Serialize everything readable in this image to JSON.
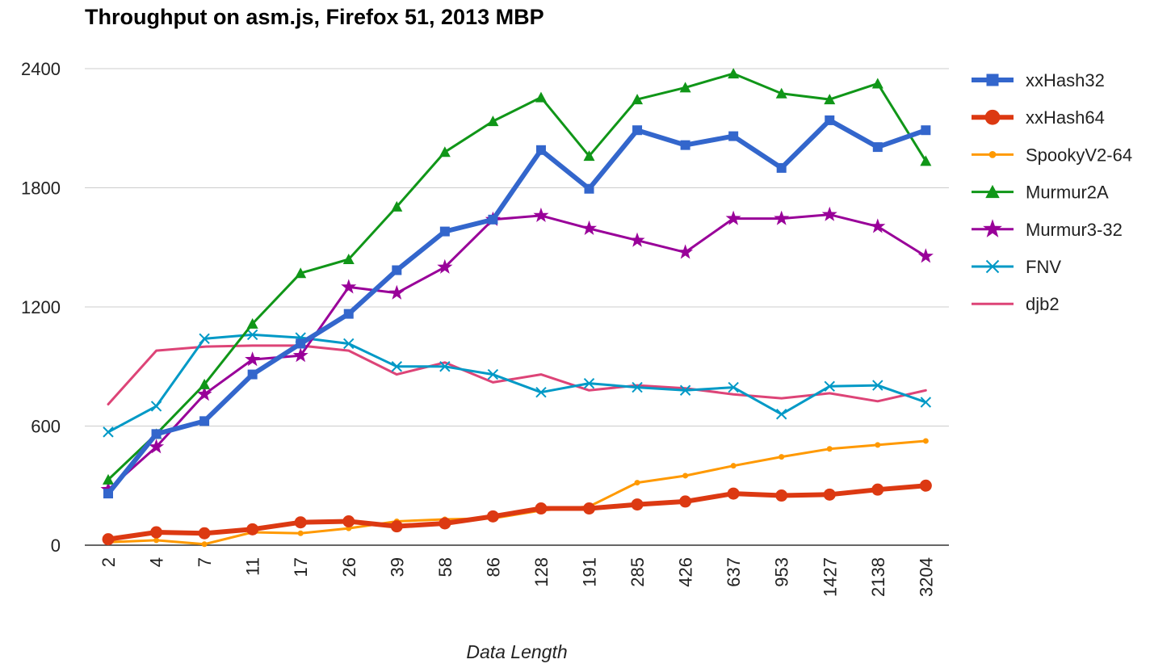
{
  "chart_data": {
    "type": "line",
    "title": "Throughput on asm.js, Firefox 51, 2013 MBP",
    "xlabel": "Data Length",
    "ylabel": "",
    "ylim": [
      0,
      2400
    ],
    "yticks": [
      "0",
      "600",
      "1200",
      "1800",
      "2400"
    ],
    "grid": true,
    "legend_position": "right",
    "categories": [
      "2",
      "4",
      "7",
      "11",
      "17",
      "26",
      "39",
      "58",
      "86",
      "128",
      "191",
      "285",
      "426",
      "637",
      "953",
      "1427",
      "2138",
      "3204"
    ],
    "series": [
      {
        "name": "xxHash32",
        "color": "#3366cc",
        "marker": "square",
        "width": 6,
        "values": [
          260,
          560,
          625,
          860,
          1015,
          1165,
          1385,
          1580,
          1640,
          1990,
          1795,
          2090,
          2015,
          2060,
          1900,
          2140,
          2005,
          2090
        ]
      },
      {
        "name": "xxHash64",
        "color": "#dc3912",
        "marker": "circle",
        "width": 6,
        "values": [
          30,
          65,
          60,
          80,
          115,
          120,
          95,
          110,
          145,
          185,
          185,
          205,
          220,
          260,
          250,
          255,
          280,
          300
        ]
      },
      {
        "name": "SpookyV2-64",
        "color": "#ff9900",
        "marker": "dot",
        "width": 3,
        "values": [
          15,
          25,
          5,
          65,
          60,
          85,
          120,
          130,
          135,
          175,
          195,
          315,
          350,
          400,
          445,
          485,
          505,
          525
        ]
      },
      {
        "name": "Murmur2A",
        "color": "#109618",
        "marker": "triangle",
        "width": 3,
        "values": [
          330,
          560,
          810,
          1115,
          1370,
          1440,
          1705,
          1980,
          2135,
          2255,
          1960,
          2245,
          2305,
          2375,
          2275,
          2245,
          2325,
          1935
        ]
      },
      {
        "name": "Murmur3-32",
        "color": "#990099",
        "marker": "star",
        "width": 3,
        "values": [
          280,
          495,
          760,
          935,
          955,
          1300,
          1270,
          1400,
          1640,
          1660,
          1595,
          1535,
          1475,
          1645,
          1645,
          1665,
          1605,
          1455
        ]
      },
      {
        "name": "FNV",
        "color": "#0099c6",
        "marker": "x",
        "width": 3,
        "values": [
          570,
          700,
          1040,
          1060,
          1045,
          1015,
          900,
          900,
          860,
          770,
          815,
          795,
          780,
          795,
          660,
          800,
          805,
          720
        ]
      },
      {
        "name": "djb2",
        "color": "#dd4477",
        "marker": "none",
        "width": 3,
        "values": [
          710,
          980,
          1000,
          1005,
          1005,
          980,
          860,
          920,
          820,
          860,
          780,
          805,
          790,
          760,
          740,
          765,
          725,
          780
        ]
      }
    ]
  }
}
